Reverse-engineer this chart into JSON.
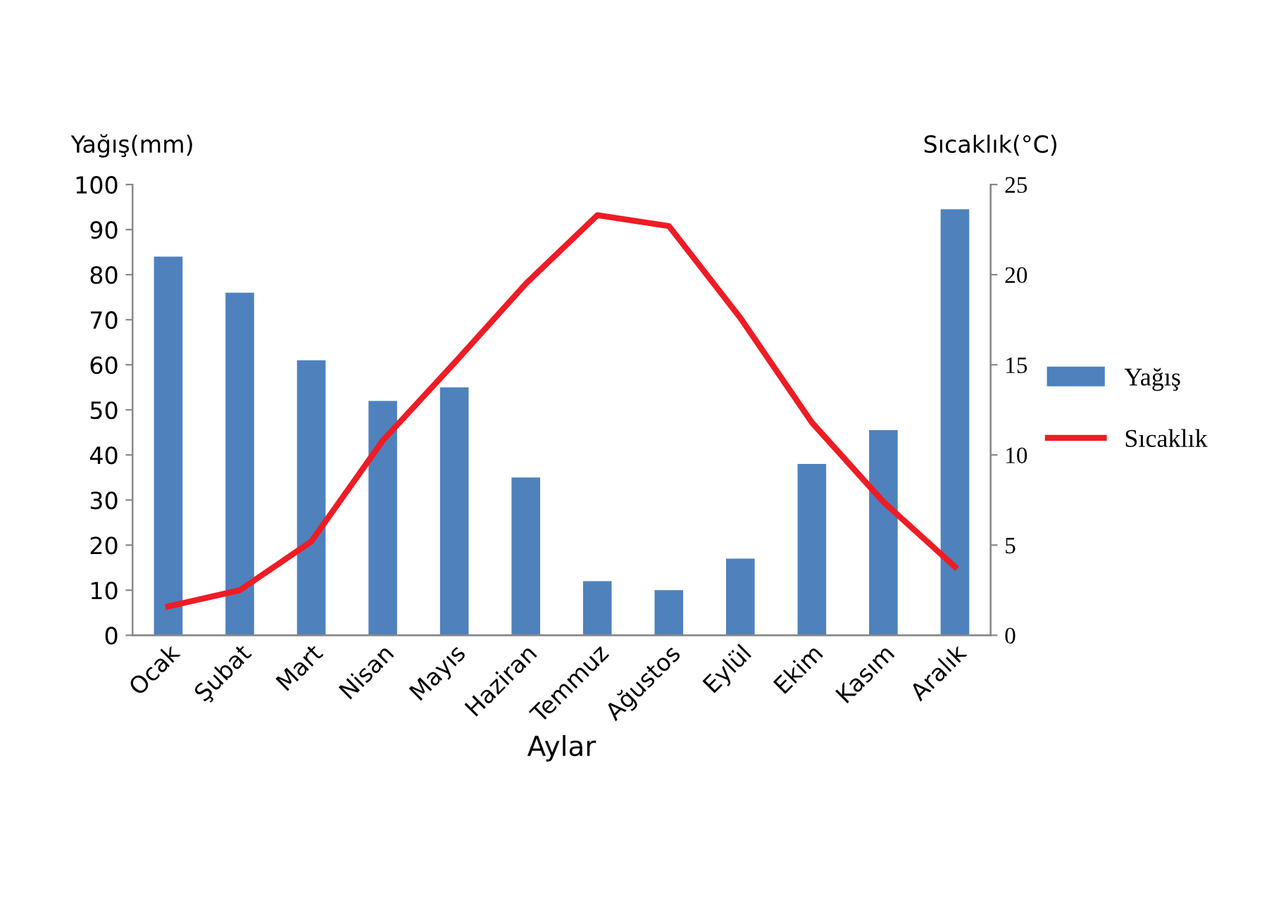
{
  "chart_data": {
    "type": "bar",
    "categories": [
      "Ocak",
      "Şubat",
      "Mart",
      "Nisan",
      "Mayıs",
      "Haziran",
      "Temmuz",
      "Ağustos",
      "Eylül",
      "Ekim",
      "Kasım",
      "Aralık"
    ],
    "series": [
      {
        "name": "Yağış",
        "color": "#4f81bd",
        "values": [
          84,
          76,
          61,
          52,
          55,
          35,
          12,
          10,
          17,
          38,
          45.5,
          94.5
        ]
      },
      {
        "name": "Sıcaklık",
        "type": "line",
        "axis": "y2",
        "color": "#ee1c25",
        "values": [
          1.6,
          2.5,
          5.2,
          10.8,
          15.1,
          19.5,
          23.3,
          22.7,
          17.6,
          11.8,
          7.4,
          3.8
        ]
      }
    ],
    "xlabel": "Aylar",
    "ylabel": "Yağış(mm)",
    "y2label": "Sıcaklık(°C)",
    "ylim": [
      0,
      100
    ],
    "yticks": [
      0,
      10,
      20,
      30,
      40,
      50,
      60,
      70,
      80,
      90,
      100
    ],
    "y2lim": [
      0,
      25
    ],
    "y2ticks": [
      0,
      5,
      10,
      15,
      20,
      25
    ],
    "legend": "right",
    "grid": false,
    "marker": "none",
    "line_style": "solid"
  }
}
